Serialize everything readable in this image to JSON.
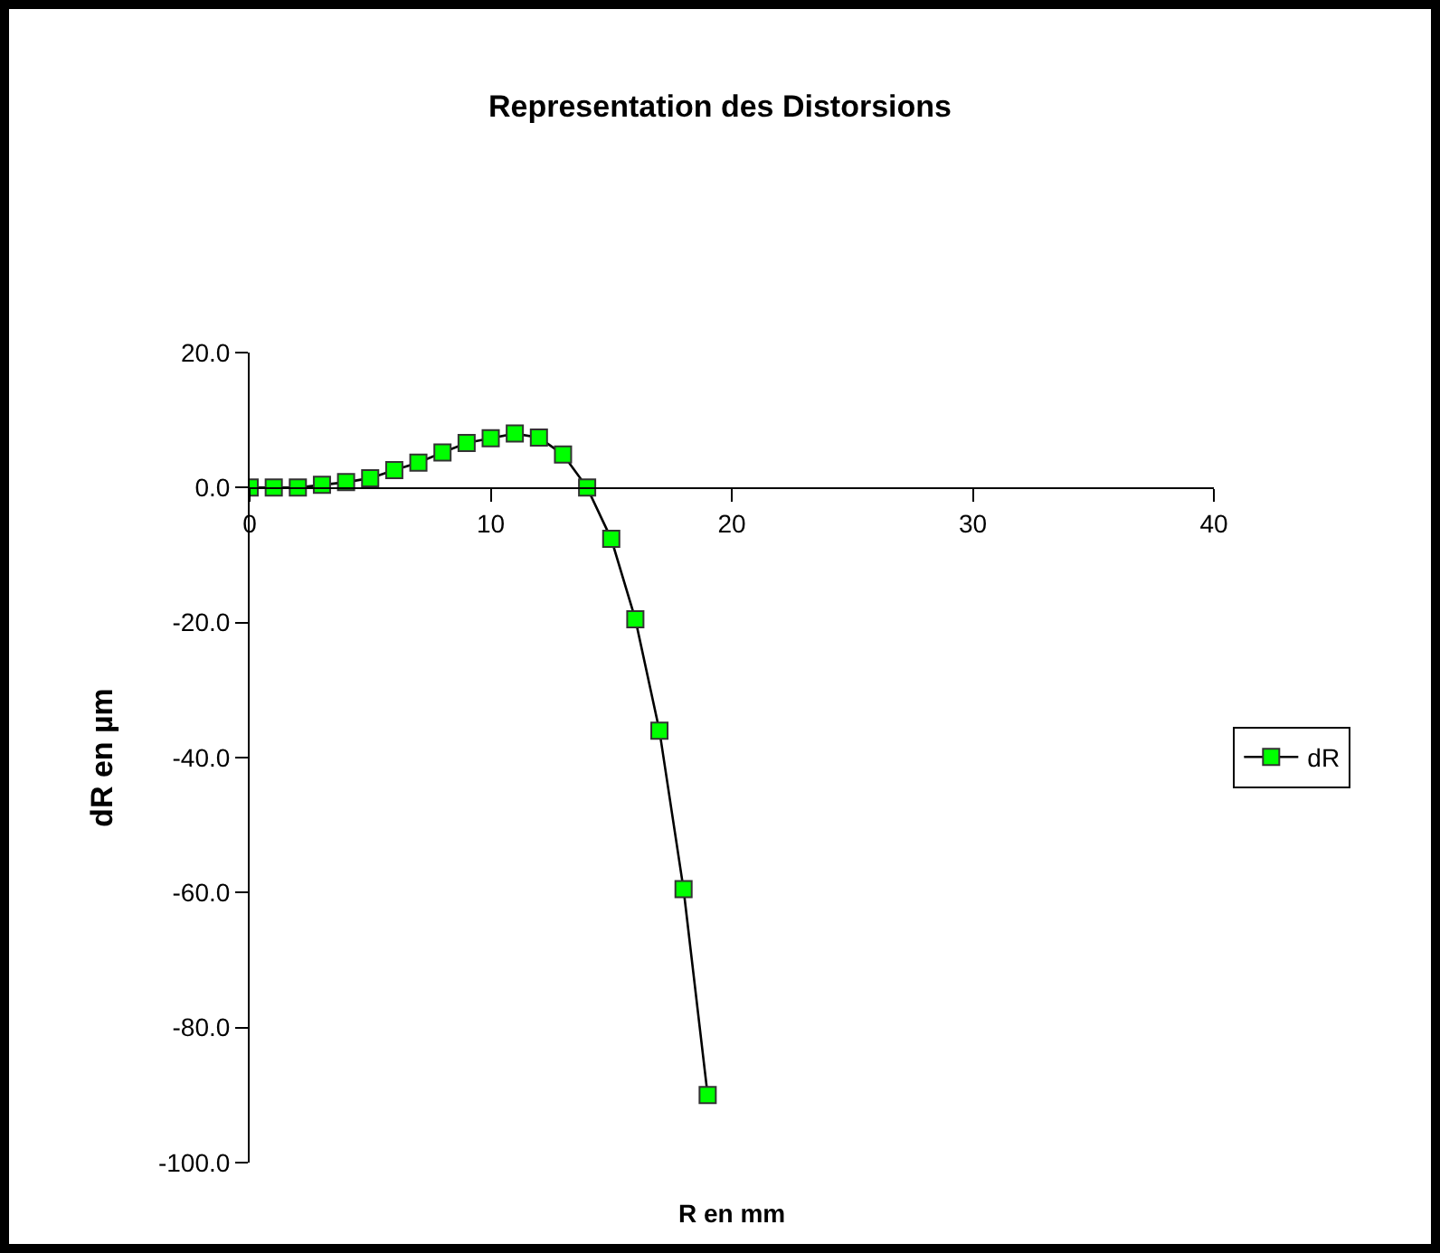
{
  "chart_data": {
    "type": "line",
    "title": "Representation des Distorsions",
    "xlabel": "R en mm",
    "ylabel": "dR en µm",
    "x": [
      0,
      1,
      2,
      3,
      4,
      5,
      6,
      7,
      8,
      9,
      10,
      11,
      12,
      13,
      14,
      15,
      16,
      17,
      18,
      19
    ],
    "series": [
      {
        "name": "dR",
        "color": "#00ff00",
        "values": [
          0,
          0,
          0,
          0.4,
          0.8,
          1.4,
          2.6,
          3.7,
          5.2,
          6.6,
          7.3,
          8.0,
          7.4,
          4.9,
          0,
          -7.6,
          -19.5,
          -36,
          -59.5,
          -90
        ]
      }
    ],
    "xlim": [
      0,
      40
    ],
    "xticks": [
      0,
      10,
      20,
      30,
      40
    ],
    "ylim": [
      -100,
      20
    ],
    "yticks": [
      {
        "value": -100,
        "label": "-100.0"
      },
      {
        "value": -80,
        "label": "-80.0"
      },
      {
        "value": -60,
        "label": "-60.0"
      },
      {
        "value": -40,
        "label": "-40.0"
      },
      {
        "value": -20,
        "label": "-20.0"
      },
      {
        "value": 0,
        "label": "0.0"
      },
      {
        "value": 20,
        "label": "20.0"
      }
    ],
    "grid": false,
    "legend": "right",
    "marker": "square",
    "line_style": "solid"
  }
}
